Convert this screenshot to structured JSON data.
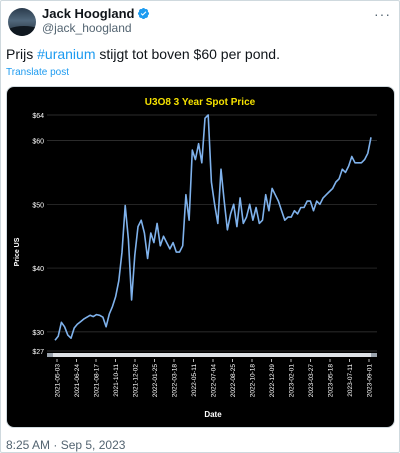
{
  "author": {
    "name": "Jack Hoogland",
    "handle": "@jack_hoogland",
    "verified_icon": "verified-badge-icon"
  },
  "menu": {
    "more_label": "···"
  },
  "tweet": {
    "text_before": "Prijs ",
    "hashtag": "#uranium",
    "text_after": " stijgt tot boven $60 per pond.",
    "translate_label": "Translate post",
    "timestamp": "8:25 AM · Sep 5, 2023"
  },
  "colors": {
    "accent": "#1d9bf0",
    "chart_line": "#7fb2ec",
    "chart_title": "#f5e100",
    "chart_bg": "#000000"
  },
  "chart_data": {
    "type": "line",
    "title": "U3O8 3 Year Spot Price",
    "xlabel": "Date",
    "ylabel": "Price US",
    "ylim": [
      27,
      64
    ],
    "y_ticks": [
      "$27",
      "$30",
      "$40",
      "$50",
      "$60",
      "$64"
    ],
    "y_tick_values": [
      27,
      30,
      40,
      50,
      60,
      64
    ],
    "x_ticks": [
      "2021-05-03",
      "2021-06-24",
      "2021-08-17",
      "2021-10-11",
      "2021-12-02",
      "2022-01-25",
      "2022-03-18",
      "2022-05-11",
      "2022-07-04",
      "2022-08-25",
      "2022-10-18",
      "2022-12-09",
      "2023-02-01",
      "2023-03-27",
      "2023-05-18",
      "2023-07-11",
      "2023-09-01"
    ],
    "grid": true,
    "series": [
      {
        "values": [
          28.7,
          29.3,
          31.5,
          30.8,
          29.5,
          29.0,
          30.6,
          31.2,
          31.6,
          32.0,
          32.3,
          32.6,
          32.4,
          32.7,
          32.6,
          32.3,
          30.8,
          32.8,
          34.0,
          35.5,
          38.0,
          42.5,
          49.8,
          44.5,
          35.0,
          42.0,
          46.5,
          47.5,
          45.5,
          41.5,
          45.5,
          44.0,
          47.0,
          43.5,
          45.0,
          44.0,
          43.0,
          44.0,
          42.5,
          42.5,
          43.5,
          51.5,
          47.5,
          58.5,
          57.0,
          59.5,
          56.5,
          63.5,
          64.0,
          53.5,
          50.0,
          47.0,
          55.5,
          50.5,
          46.0,
          48.5,
          50.0,
          46.5,
          51.0,
          47.0,
          48.0,
          50.0,
          47.5,
          49.5,
          47.0,
          47.5,
          51.5,
          49.0,
          52.5,
          51.5,
          50.5,
          49.0,
          47.5,
          48.0,
          48.0,
          49.0,
          48.5,
          49.5,
          49.5,
          50.5,
          50.5,
          49.0,
          50.5,
          50.0,
          51.0,
          51.5,
          52.0,
          52.5,
          53.5,
          54.0,
          55.5,
          55.0,
          56.0,
          57.5,
          56.5,
          56.5,
          56.5,
          57.0,
          58.0,
          60.5
        ]
      }
    ]
  }
}
